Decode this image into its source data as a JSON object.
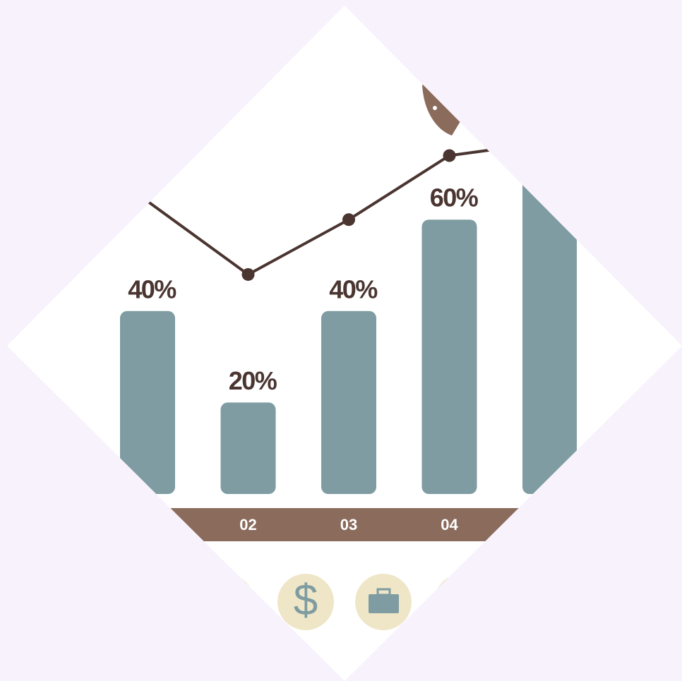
{
  "chart_data": {
    "type": "bar",
    "categories": [
      null,
      "02",
      "03",
      "04",
      null
    ],
    "values": [
      40,
      20,
      40,
      60,
      70
    ],
    "value_labels": [
      "40%",
      "20%",
      "40%",
      "60%",
      null
    ],
    "color": "#7e9ca1",
    "ylim": [
      0,
      100
    ],
    "line": {
      "values": [
        64,
        48,
        60,
        74,
        77
      ],
      "color": "#4a3530"
    }
  }
}
